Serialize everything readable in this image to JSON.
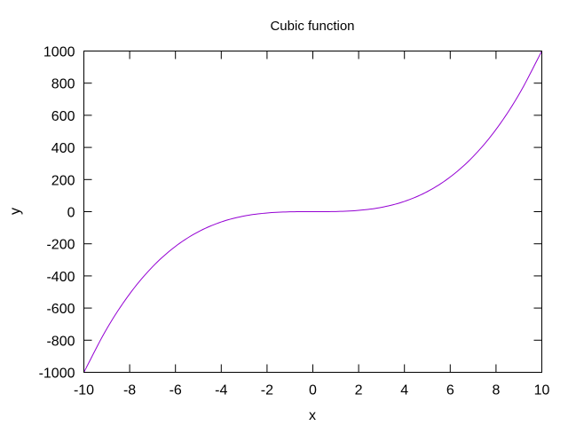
{
  "chart_data": {
    "type": "line",
    "title": "Cubic function",
    "xlabel": "x",
    "ylabel": "y",
    "xlim": [
      -10,
      10
    ],
    "ylim": [
      -1000,
      1000
    ],
    "xticks": [
      -10,
      -8,
      -6,
      -4,
      -2,
      0,
      2,
      4,
      6,
      8,
      10
    ],
    "yticks": [
      -1000,
      -800,
      -600,
      -400,
      -200,
      0,
      200,
      400,
      600,
      800,
      1000
    ],
    "xtick_labels": [
      "-10",
      "-8",
      "-6",
      "-4",
      "-2",
      "0",
      "2",
      "4",
      "6",
      "8",
      "10"
    ],
    "ytick_labels": [
      "-1000",
      "-800",
      "-600",
      "-400",
      "-200",
      "0",
      "200",
      "400",
      "600",
      "800",
      "1000"
    ],
    "grid": false,
    "legend": "none",
    "series": [
      {
        "color": "#9400d3",
        "x": [
          -10,
          -9,
          -8,
          -7,
          -6,
          -5,
          -4,
          -3,
          -2,
          -1,
          0,
          1,
          2,
          3,
          4,
          5,
          6,
          7,
          8,
          9,
          10
        ],
        "y": [
          -1000,
          -729,
          -512,
          -343,
          -216,
          -125,
          -64,
          -27,
          -8,
          -1,
          0,
          1,
          8,
          27,
          64,
          125,
          216,
          343,
          512,
          729,
          1000
        ]
      }
    ]
  }
}
